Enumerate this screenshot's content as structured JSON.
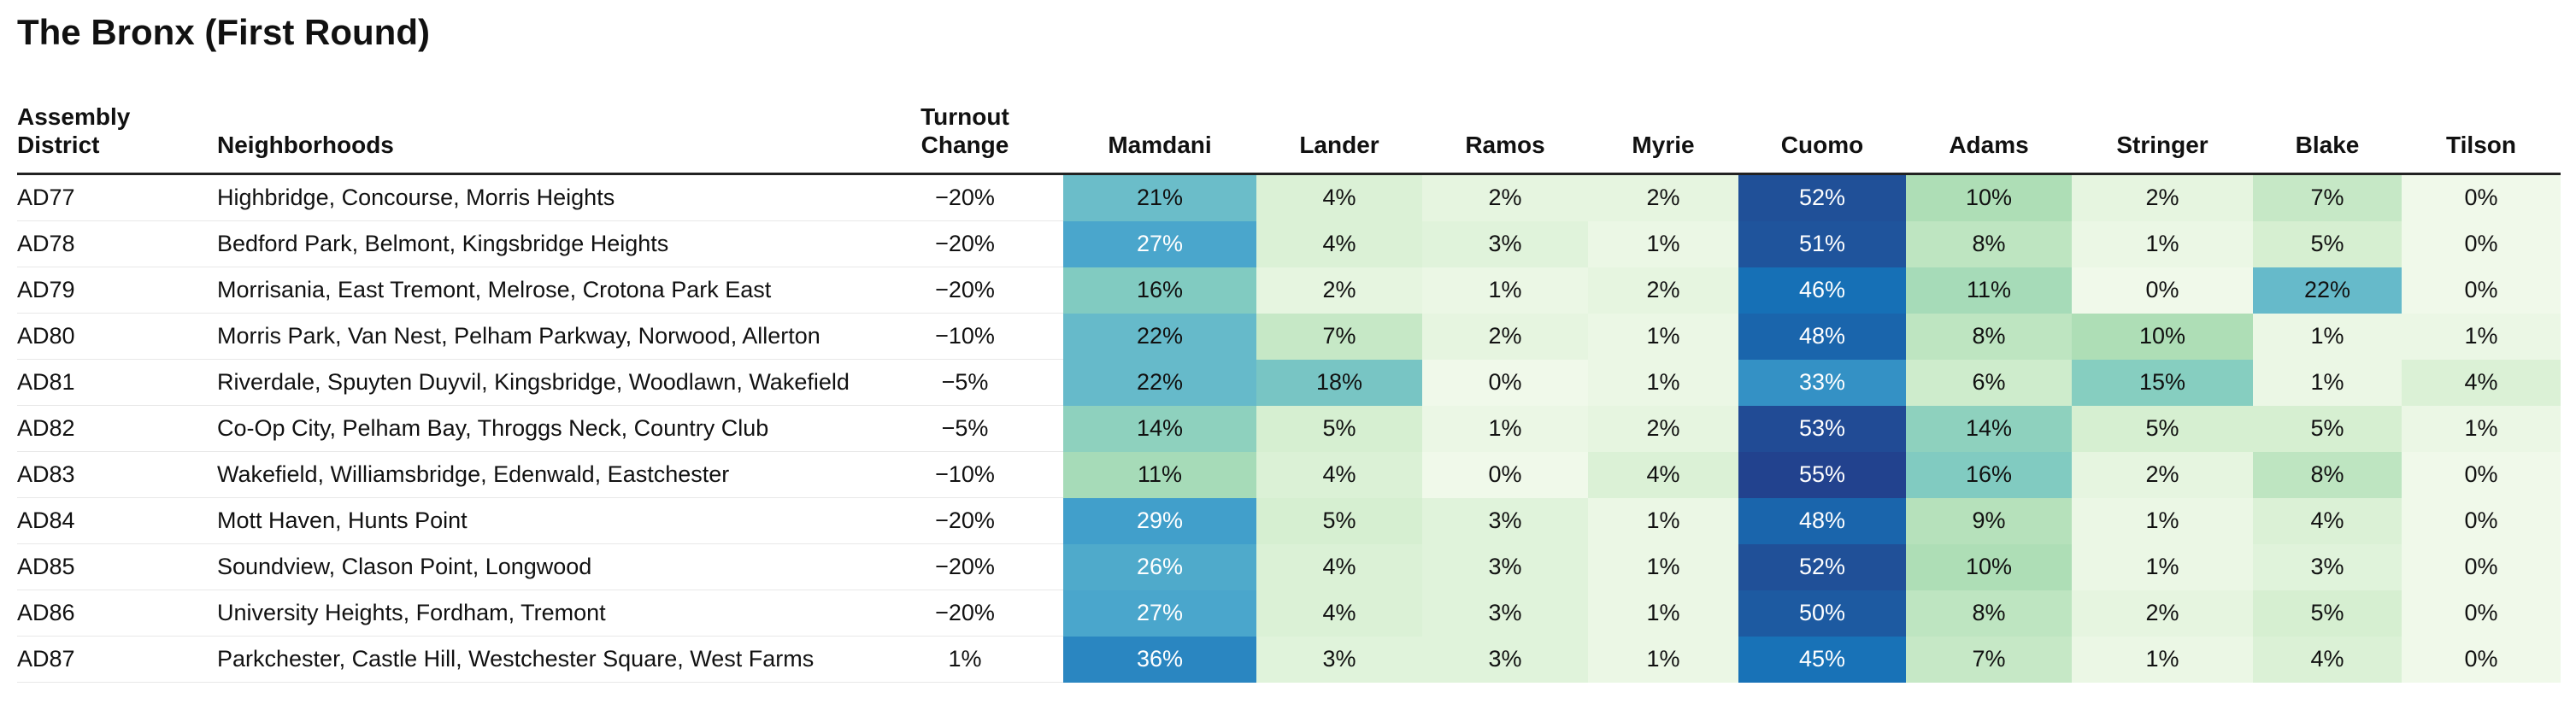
{
  "title": "The Bronx (First Round)",
  "headers": {
    "district": "Assembly\nDistrict",
    "neighborhoods": "Neighborhoods",
    "turnout": "Turnout\nChange"
  },
  "candidates": [
    "Mamdani",
    "Lander",
    "Ramos",
    "Myrie",
    "Cuomo",
    "Adams",
    "Stringer",
    "Blake",
    "Tilson"
  ],
  "colors": {
    "scale_low": "#f0f9ea",
    "scale_mid": "#7accc4",
    "scale_high": "#1c4f93",
    "text_dark": "#111111",
    "text_light": "#ffffff",
    "rule": "#222222"
  },
  "chart_data": {
    "type": "table",
    "title": "The Bronx (First Round)",
    "columns": [
      "Assembly District",
      "Neighborhoods",
      "Turnout Change",
      "Mamdani",
      "Lander",
      "Ramos",
      "Myrie",
      "Cuomo",
      "Adams",
      "Stringer",
      "Blake",
      "Tilson"
    ],
    "rows": [
      {
        "district": "AD77",
        "neighborhoods": "Highbridge, Concourse, Morris Heights",
        "turnout": "−20%",
        "values": [
          21,
          4,
          2,
          2,
          52,
          10,
          2,
          7,
          0
        ]
      },
      {
        "district": "AD78",
        "neighborhoods": "Bedford Park, Belmont, Kingsbridge Heights",
        "turnout": "−20%",
        "values": [
          27,
          4,
          3,
          1,
          51,
          8,
          1,
          5,
          0
        ]
      },
      {
        "district": "AD79",
        "neighborhoods": "Morrisania, East Tremont, Melrose, Crotona Park East",
        "turnout": "−20%",
        "values": [
          16,
          2,
          1,
          2,
          46,
          11,
          0,
          22,
          0
        ]
      },
      {
        "district": "AD80",
        "neighborhoods": "Morris Park, Van Nest, Pelham Parkway, Norwood, Allerton",
        "turnout": "−10%",
        "values": [
          22,
          7,
          2,
          1,
          48,
          8,
          10,
          1,
          1
        ]
      },
      {
        "district": "AD81",
        "neighborhoods": "Riverdale, Spuyten Duyvil, Kingsbridge, Woodlawn, Wakefield",
        "turnout": "−5%",
        "values": [
          22,
          18,
          0,
          1,
          33,
          6,
          15,
          1,
          4
        ]
      },
      {
        "district": "AD82",
        "neighborhoods": "Co-Op City, Pelham Bay, Throggs Neck, Country Club",
        "turnout": "−5%",
        "values": [
          14,
          5,
          1,
          2,
          53,
          14,
          5,
          5,
          1
        ]
      },
      {
        "district": "AD83",
        "neighborhoods": "Wakefield, Williamsbridge, Edenwald, Eastchester",
        "turnout": "−10%",
        "values": [
          11,
          4,
          0,
          4,
          55,
          16,
          2,
          8,
          0
        ]
      },
      {
        "district": "AD84",
        "neighborhoods": "Mott Haven, Hunts Point",
        "turnout": "−20%",
        "values": [
          29,
          5,
          3,
          1,
          48,
          9,
          1,
          4,
          0
        ]
      },
      {
        "district": "AD85",
        "neighborhoods": "Soundview, Clason Point, Longwood",
        "turnout": "−20%",
        "values": [
          26,
          4,
          3,
          1,
          52,
          10,
          1,
          3,
          0
        ]
      },
      {
        "district": "AD86",
        "neighborhoods": "University Heights, Fordham, Tremont",
        "turnout": "−20%",
        "values": [
          27,
          4,
          3,
          1,
          50,
          8,
          2,
          5,
          0
        ]
      },
      {
        "district": "AD87",
        "neighborhoods": "Parkchester, Castle Hill, Westchester Square, West Farms",
        "turnout": "1%",
        "values": [
          36,
          3,
          3,
          1,
          45,
          7,
          1,
          4,
          0
        ]
      }
    ]
  }
}
